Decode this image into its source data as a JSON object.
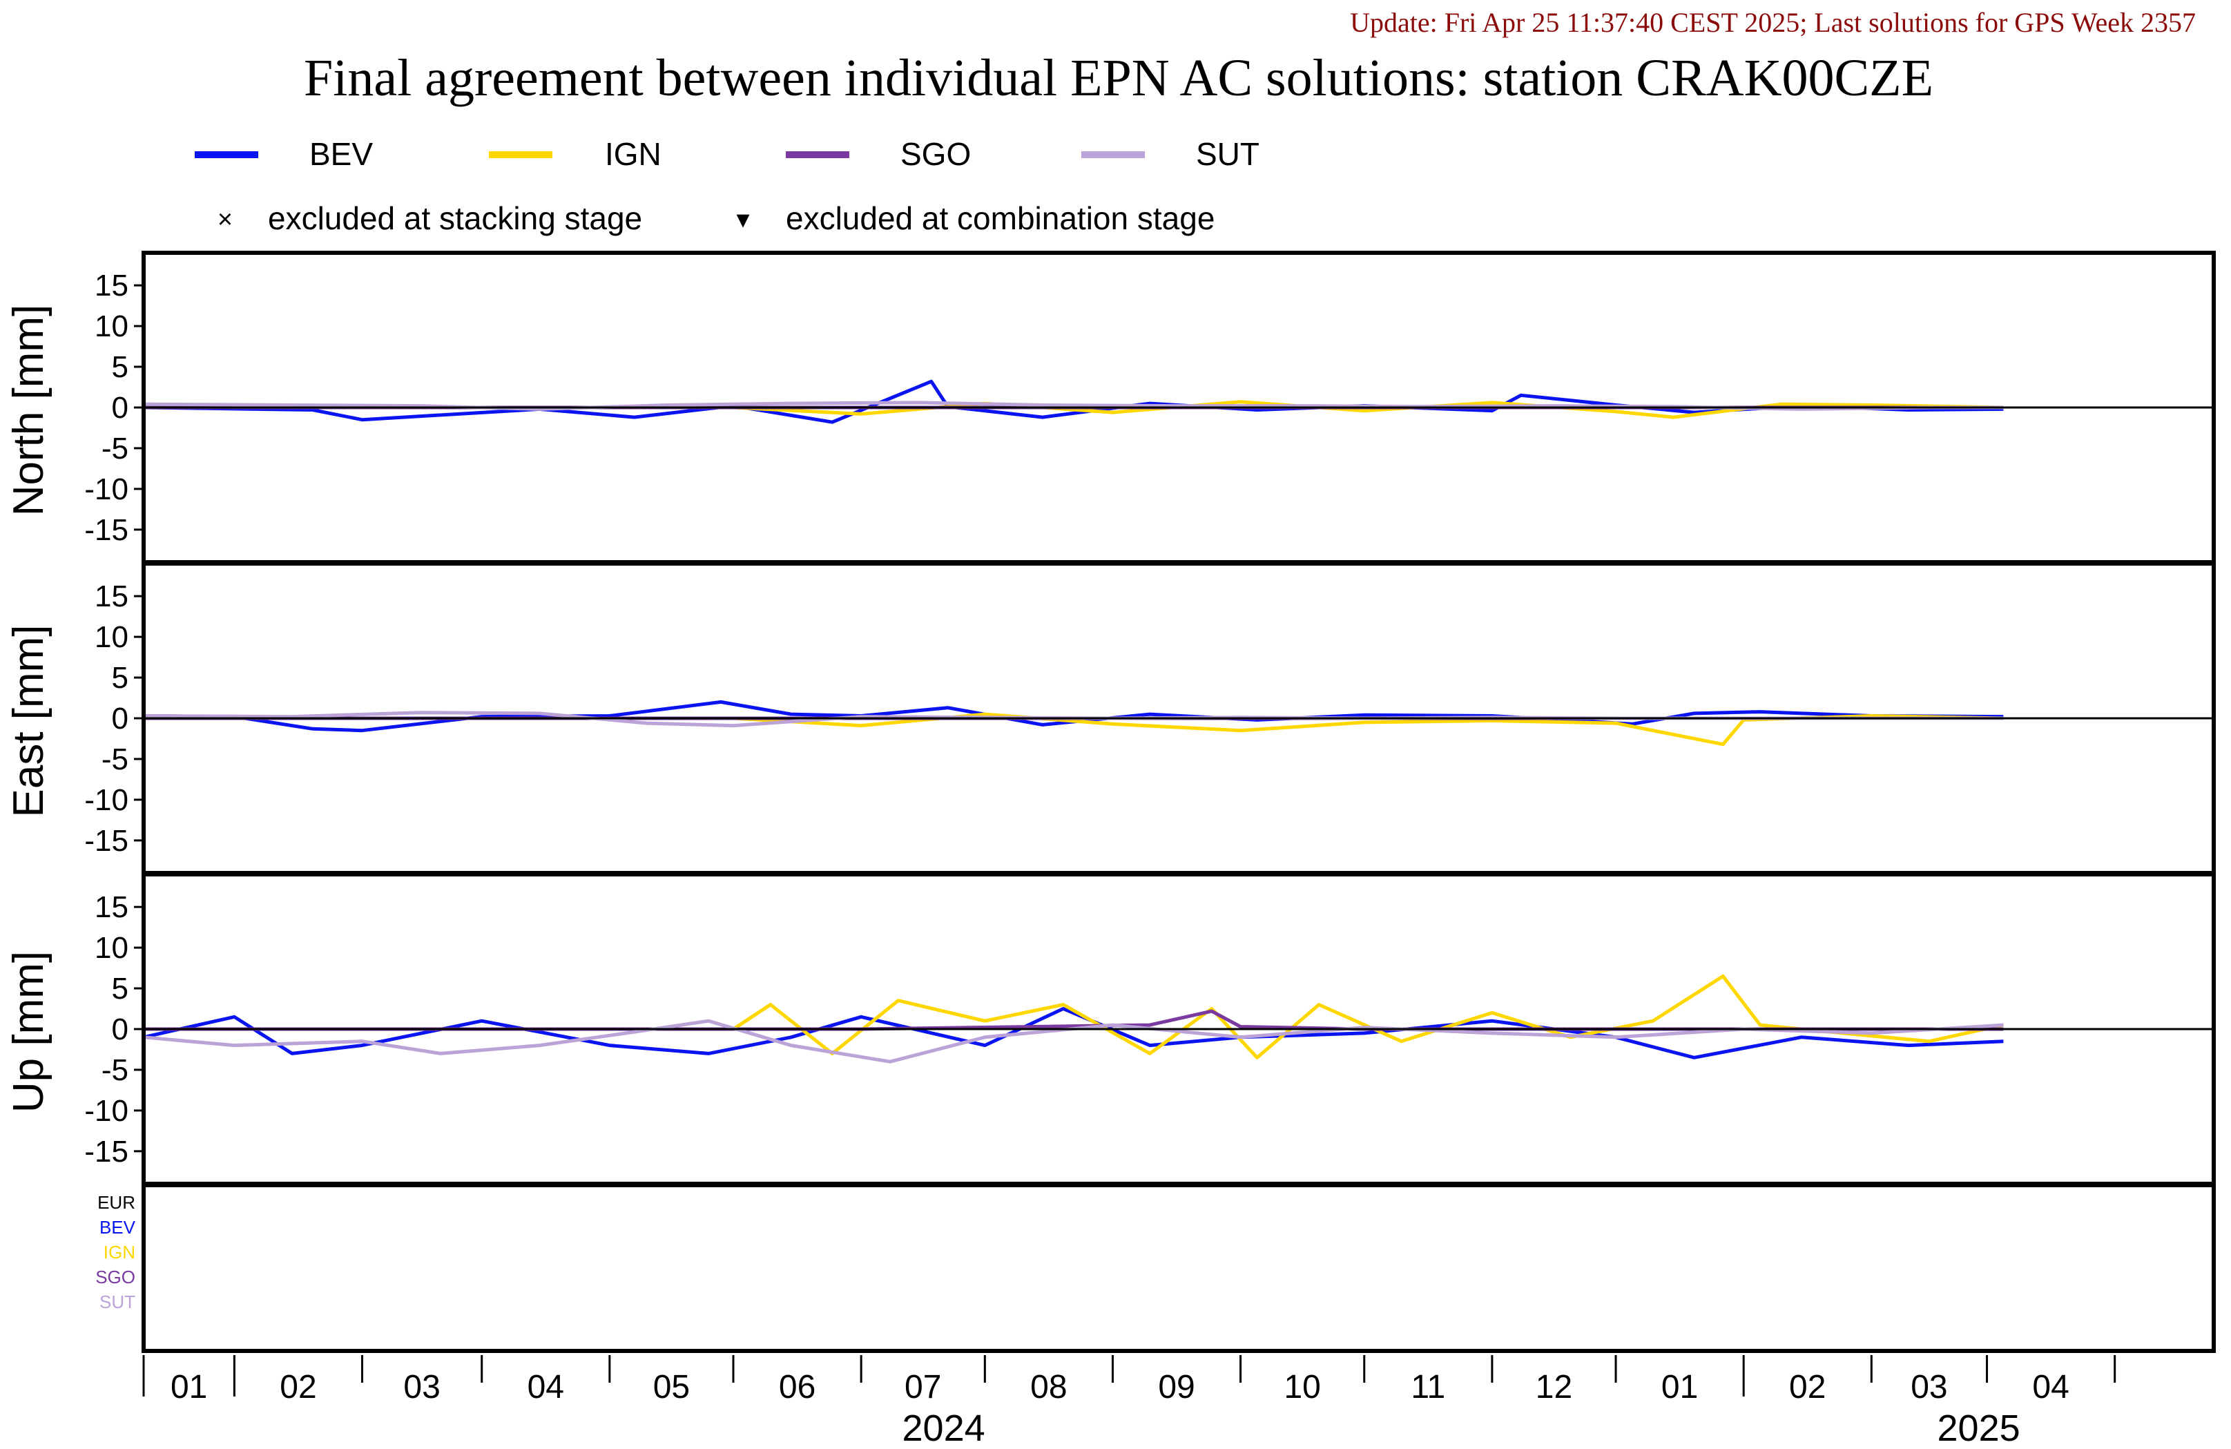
{
  "update_text": "Update: Fri Apr 25 11:37:40 CEST 2025; Last solutions for GPS Week 2357",
  "title": "Final agreement between individual EPN AC solutions: station CRAK00CZE",
  "legend": {
    "series": [
      {
        "name": "BEV",
        "color": "#0a14f0"
      },
      {
        "name": "IGN",
        "color": "#ffd700"
      },
      {
        "name": "SGO",
        "color": "#7a3aa0"
      },
      {
        "name": "SUT",
        "color": "#bba3d8"
      }
    ],
    "markers": [
      {
        "symbol": "×",
        "label": "excluded at stacking stage"
      },
      {
        "symbol": "▾",
        "label": "excluded at combination stage"
      }
    ]
  },
  "exclusion_labels": [
    {
      "name": "EUR",
      "color": "#000000"
    },
    {
      "name": "BEV",
      "color": "#0a14f0"
    },
    {
      "name": "IGN",
      "color": "#ffd700"
    },
    {
      "name": "SGO",
      "color": "#7a3aa0"
    },
    {
      "name": "SUT",
      "color": "#bba3d8"
    }
  ],
  "x_axis": {
    "start": "2023-12-10",
    "end": "2025-04-25",
    "month_labels": [
      "01",
      "02",
      "03",
      "04",
      "05",
      "06",
      "07",
      "08",
      "09",
      "10",
      "11",
      "12",
      "01",
      "02",
      "03",
      "04"
    ],
    "year_labels": [
      "2024",
      "2025"
    ]
  },
  "chart_data": [
    {
      "type": "line",
      "panel": "North",
      "ylabel": "North [mm]",
      "ylim": [
        -19,
        19
      ],
      "yticks": [
        15,
        10,
        5,
        0,
        -5,
        -10,
        -15
      ],
      "reference_line": 0,
      "series": [
        {
          "name": "BEV",
          "x": [
            "2023-12-10",
            "2024-01-20",
            "2024-02-01",
            "2024-03-15",
            "2024-04-07",
            "2024-05-01",
            "2024-05-25",
            "2024-06-18",
            "2024-06-22",
            "2024-07-15",
            "2024-08-10",
            "2024-09-05",
            "2024-10-01",
            "2024-11-01",
            "2024-11-08",
            "2024-12-01",
            "2024-12-20",
            "2025-01-15",
            "2025-02-10",
            "2025-03-05"
          ],
          "values": [
            0,
            -0.3,
            -1.5,
            -0.2,
            -1.2,
            0.2,
            -1.8,
            3.2,
            0.1,
            -1.2,
            0.5,
            -0.3,
            0.2,
            -0.4,
            1.5,
            0.3,
            -0.6,
            0.2,
            -0.3,
            -0.2
          ]
        },
        {
          "name": "IGN",
          "x": [
            "2024-05-01",
            "2024-06-01",
            "2024-07-01",
            "2024-08-01",
            "2024-09-01",
            "2024-10-01",
            "2024-11-01",
            "2024-12-01",
            "2024-12-15",
            "2025-01-10",
            "2025-02-01",
            "2025-03-05"
          ],
          "values": [
            0,
            -0.8,
            0.5,
            -0.6,
            0.7,
            -0.4,
            0.6,
            -0.5,
            -1.2,
            0.4,
            0.3,
            0
          ]
        },
        {
          "name": "SGO",
          "x": [
            "2023-12-10",
            "2024-06-01",
            "2024-12-01",
            "2025-03-05"
          ],
          "values": [
            0,
            0,
            0,
            0
          ]
        },
        {
          "name": "SUT",
          "x": [
            "2023-12-10",
            "2024-01-15",
            "2024-02-15",
            "2024-03-15",
            "2024-04-15",
            "2024-05-15",
            "2024-06-15",
            "2024-07-15",
            "2024-08-15",
            "2024-09-15",
            "2024-10-15",
            "2024-11-15",
            "2024-12-15",
            "2025-01-15",
            "2025-02-15",
            "2025-03-05"
          ],
          "values": [
            0.4,
            0.3,
            0.2,
            -0.2,
            0.3,
            0.5,
            0.6,
            0.3,
            0.2,
            0.2,
            0.1,
            0.2,
            0.1,
            -0.2,
            0,
            0
          ]
        }
      ]
    },
    {
      "type": "line",
      "panel": "East",
      "ylabel": "East [mm]",
      "ylim": [
        -19,
        19
      ],
      "yticks": [
        15,
        10,
        5,
        0,
        -5,
        -10,
        -15
      ],
      "reference_line": 0,
      "series": [
        {
          "name": "BEV",
          "x": [
            "2023-12-10",
            "2024-01-01",
            "2024-01-20",
            "2024-02-01",
            "2024-03-01",
            "2024-04-01",
            "2024-04-28",
            "2024-05-15",
            "2024-06-01",
            "2024-06-22",
            "2024-07-15",
            "2024-08-10",
            "2024-09-05",
            "2024-10-01",
            "2024-11-01",
            "2024-12-05",
            "2024-12-20",
            "2025-01-05",
            "2025-02-01",
            "2025-03-05"
          ],
          "values": [
            0.3,
            0.2,
            -1.3,
            -1.5,
            0.2,
            0.3,
            2.0,
            0.5,
            0.3,
            1.3,
            -0.8,
            0.5,
            -0.2,
            0.4,
            0.3,
            -0.7,
            0.6,
            0.8,
            0.3,
            0.2
          ]
        },
        {
          "name": "IGN",
          "x": [
            "2024-05-01",
            "2024-06-01",
            "2024-07-01",
            "2024-08-01",
            "2024-09-01",
            "2024-10-01",
            "2024-11-01",
            "2024-12-01",
            "2024-12-27",
            "2025-01-01",
            "2025-02-01",
            "2025-03-05"
          ],
          "values": [
            0,
            -0.9,
            0.5,
            -0.7,
            -1.5,
            -0.5,
            -0.3,
            -0.6,
            -3.2,
            -0.2,
            0.3,
            0
          ]
        },
        {
          "name": "SGO",
          "x": [
            "2023-12-10",
            "2024-06-01",
            "2024-12-01",
            "2025-03-05"
          ],
          "values": [
            0,
            0,
            0,
            0
          ]
        },
        {
          "name": "SUT",
          "x": [
            "2023-12-10",
            "2024-01-15",
            "2024-02-15",
            "2024-03-15",
            "2024-04-10",
            "2024-05-01",
            "2024-06-01",
            "2024-07-01",
            "2024-08-01",
            "2024-09-01",
            "2024-10-01",
            "2024-11-01",
            "2024-12-01",
            "2025-01-01",
            "2025-02-01",
            "2025-03-05"
          ],
          "values": [
            0.3,
            0.2,
            0.7,
            0.6,
            -0.6,
            -0.9,
            0.2,
            0.1,
            0,
            0.1,
            0,
            0.1,
            0,
            0,
            0,
            0
          ]
        }
      ]
    },
    {
      "type": "line",
      "panel": "Up",
      "ylabel": "Up [mm]",
      "ylim": [
        -19,
        19
      ],
      "yticks": [
        15,
        10,
        5,
        0,
        -5,
        -10,
        -15
      ],
      "reference_line": 0,
      "series": [
        {
          "name": "BEV",
          "x": [
            "2023-12-10",
            "2024-01-01",
            "2024-01-15",
            "2024-02-01",
            "2024-03-01",
            "2024-04-01",
            "2024-04-25",
            "2024-05-15",
            "2024-06-01",
            "2024-07-01",
            "2024-07-20",
            "2024-08-10",
            "2024-09-01",
            "2024-10-01",
            "2024-11-01",
            "2024-12-01",
            "2024-12-20",
            "2025-01-15",
            "2025-02-10",
            "2025-03-05"
          ],
          "values": [
            -1,
            1.5,
            -3,
            -2,
            1,
            -2,
            -3,
            -1,
            1.5,
            -2,
            2.5,
            -2,
            -1,
            -0.5,
            1,
            -1,
            -3.5,
            -1,
            -2,
            -1.5
          ]
        },
        {
          "name": "IGN",
          "x": [
            "2024-05-01",
            "2024-05-10",
            "2024-05-25",
            "2024-06-10",
            "2024-07-01",
            "2024-07-20",
            "2024-08-10",
            "2024-08-25",
            "2024-09-05",
            "2024-09-20",
            "2024-10-10",
            "2024-11-01",
            "2024-11-20",
            "2024-12-10",
            "2024-12-27",
            "2025-01-05",
            "2025-01-25",
            "2025-02-15",
            "2025-03-05"
          ],
          "values": [
            0,
            3,
            -3,
            3.5,
            1,
            3,
            -3,
            2.5,
            -3.5,
            3,
            -1.5,
            2,
            -1,
            1,
            6.5,
            0.5,
            -0.5,
            -1.5,
            0.5
          ]
        },
        {
          "name": "SGO",
          "x": [
            "2023-12-10",
            "2024-03-01",
            "2024-06-01",
            "2024-08-10",
            "2024-08-25",
            "2024-09-01",
            "2024-10-01",
            "2024-12-01",
            "2025-03-05"
          ],
          "values": [
            0,
            0,
            0,
            0.5,
            2.2,
            0.3,
            0,
            0,
            0
          ]
        },
        {
          "name": "SUT",
          "x": [
            "2023-12-10",
            "2024-01-01",
            "2024-02-01",
            "2024-02-20",
            "2024-03-15",
            "2024-04-05",
            "2024-04-25",
            "2024-05-15",
            "2024-06-08",
            "2024-07-01",
            "2024-08-01",
            "2024-09-01",
            "2024-10-01",
            "2024-11-01",
            "2024-12-01",
            "2025-01-01",
            "2025-02-01",
            "2025-03-05"
          ],
          "values": [
            -1,
            -2,
            -1.5,
            -3,
            -2,
            -0.5,
            1,
            -2,
            -4,
            -1,
            0.5,
            -1,
            0.2,
            -0.5,
            -1,
            0,
            -0.5,
            0.5
          ]
        }
      ]
    }
  ]
}
